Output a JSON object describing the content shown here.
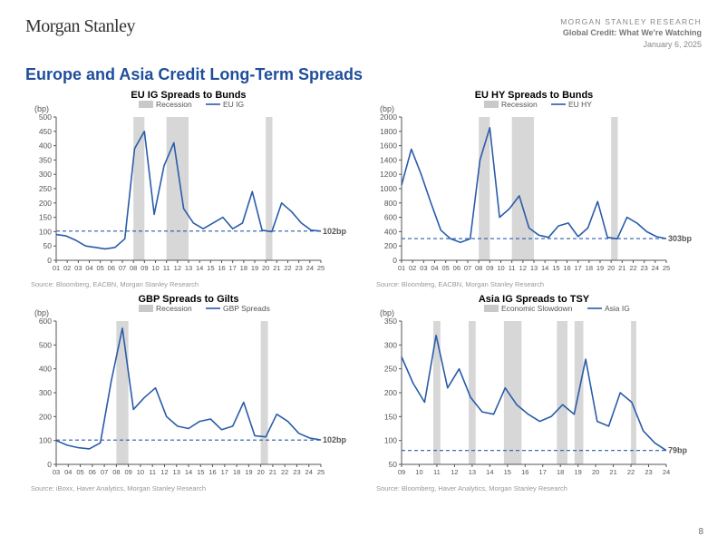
{
  "header": {
    "logo": "Morgan Stanley",
    "line1": "MORGAN STANLEY RESEARCH",
    "line2": "Global Credit: What We're Watching",
    "line3": "January 6, 2025"
  },
  "title": "Europe and Asia Credit Long-Term Spreads",
  "page_number": "8",
  "colors": {
    "line": "#2a5caa",
    "recession": "#c9c9c9",
    "dashed": "#2a5caa",
    "axis": "#555555",
    "text": "#333333"
  },
  "charts": [
    {
      "id": "eu_ig",
      "title": "EU IG Spreads to Bunds",
      "y_unit": "(bp)",
      "legend": [
        {
          "type": "box",
          "label": "Recession"
        },
        {
          "type": "line",
          "label": "EU IG"
        }
      ],
      "x_labels": [
        "01",
        "02",
        "03",
        "04",
        "05",
        "06",
        "07",
        "08",
        "09",
        "10",
        "11",
        "12",
        "13",
        "14",
        "15",
        "16",
        "17",
        "18",
        "19",
        "20",
        "21",
        "22",
        "23",
        "24",
        "25"
      ],
      "y_min": 0,
      "y_max": 500,
      "y_step": 50,
      "recessions": [
        [
          7,
          8
        ],
        [
          10,
          12
        ],
        [
          19,
          19.6
        ]
      ],
      "dashed_ref": 102,
      "end_label": "102bp",
      "series": [
        90,
        85,
        70,
        50,
        45,
        40,
        45,
        75,
        390,
        450,
        160,
        330,
        410,
        180,
        130,
        110,
        130,
        150,
        110,
        130,
        240,
        105,
        100,
        200,
        170,
        130,
        105,
        102
      ],
      "source": "Source: Bloomberg, EACBN, Morgan Stanley Research"
    },
    {
      "id": "eu_hy",
      "title": "EU HY Spreads to Bunds",
      "y_unit": "(bp)",
      "legend": [
        {
          "type": "box",
          "label": "Recession"
        },
        {
          "type": "line",
          "label": "EU HY"
        }
      ],
      "x_labels": [
        "01",
        "02",
        "03",
        "04",
        "05",
        "06",
        "07",
        "08",
        "09",
        "10",
        "11",
        "12",
        "13",
        "14",
        "15",
        "16",
        "17",
        "18",
        "19",
        "20",
        "21",
        "22",
        "23",
        "24",
        "25"
      ],
      "y_min": 0,
      "y_max": 2000,
      "y_step": 200,
      "recessions": [
        [
          7,
          8
        ],
        [
          10,
          12
        ],
        [
          19,
          19.6
        ]
      ],
      "dashed_ref": 303,
      "end_label": "303bp",
      "series": [
        1050,
        1550,
        1200,
        800,
        420,
        300,
        250,
        300,
        1400,
        1850,
        600,
        720,
        900,
        450,
        350,
        320,
        480,
        520,
        330,
        450,
        820,
        320,
        300,
        600,
        520,
        400,
        330,
        303
      ],
      "source": "Source: Bloomberg, EACBN, Morgan Stanley Research"
    },
    {
      "id": "gbp",
      "title": "GBP Spreads to Gilts",
      "y_unit": "(bp)",
      "legend": [
        {
          "type": "box",
          "label": "Recession"
        },
        {
          "type": "line",
          "label": "GBP Spreads"
        }
      ],
      "x_labels": [
        "03",
        "04",
        "05",
        "06",
        "07",
        "08",
        "09",
        "10",
        "11",
        "12",
        "13",
        "14",
        "15",
        "16",
        "17",
        "18",
        "19",
        "20",
        "21",
        "22",
        "23",
        "24",
        "25"
      ],
      "y_min": 0,
      "y_max": 600,
      "y_step": 100,
      "recessions": [
        [
          5,
          6
        ],
        [
          17,
          17.6
        ]
      ],
      "dashed_ref": 102,
      "end_label": "102bp",
      "series": [
        100,
        80,
        70,
        65,
        90,
        350,
        570,
        230,
        280,
        320,
        200,
        160,
        150,
        180,
        190,
        145,
        160,
        260,
        120,
        115,
        210,
        180,
        130,
        110,
        102
      ],
      "source": "Source: iBoxx, Haver Analytics, Morgan Stanley Research"
    },
    {
      "id": "asia_ig",
      "title": "Asia IG Spreads to TSY",
      "y_unit": "(bp)",
      "legend": [
        {
          "type": "box",
          "label": "Economic Slowdown"
        },
        {
          "type": "line",
          "label": "Asia IG"
        }
      ],
      "x_labels": [
        "09",
        "10",
        "11",
        "12",
        "13",
        "14",
        "15",
        "16",
        "17",
        "18",
        "19",
        "20",
        "21",
        "22",
        "23",
        "24"
      ],
      "y_min": 50,
      "y_max": 350,
      "y_step": 50,
      "recessions": [
        [
          1.8,
          2.2
        ],
        [
          3.8,
          4.2
        ],
        [
          5.8,
          6.8
        ],
        [
          8.8,
          9.4
        ],
        [
          9.8,
          10.3
        ],
        [
          13,
          13.3
        ]
      ],
      "dashed_ref": 79,
      "end_label": "79bp",
      "series": [
        275,
        220,
        180,
        320,
        210,
        250,
        190,
        160,
        155,
        210,
        175,
        155,
        140,
        150,
        175,
        155,
        270,
        140,
        130,
        200,
        180,
        120,
        95,
        79
      ],
      "source": "Source: Bloomberg, Haver Analytics, Morgan Stanley Research"
    }
  ]
}
